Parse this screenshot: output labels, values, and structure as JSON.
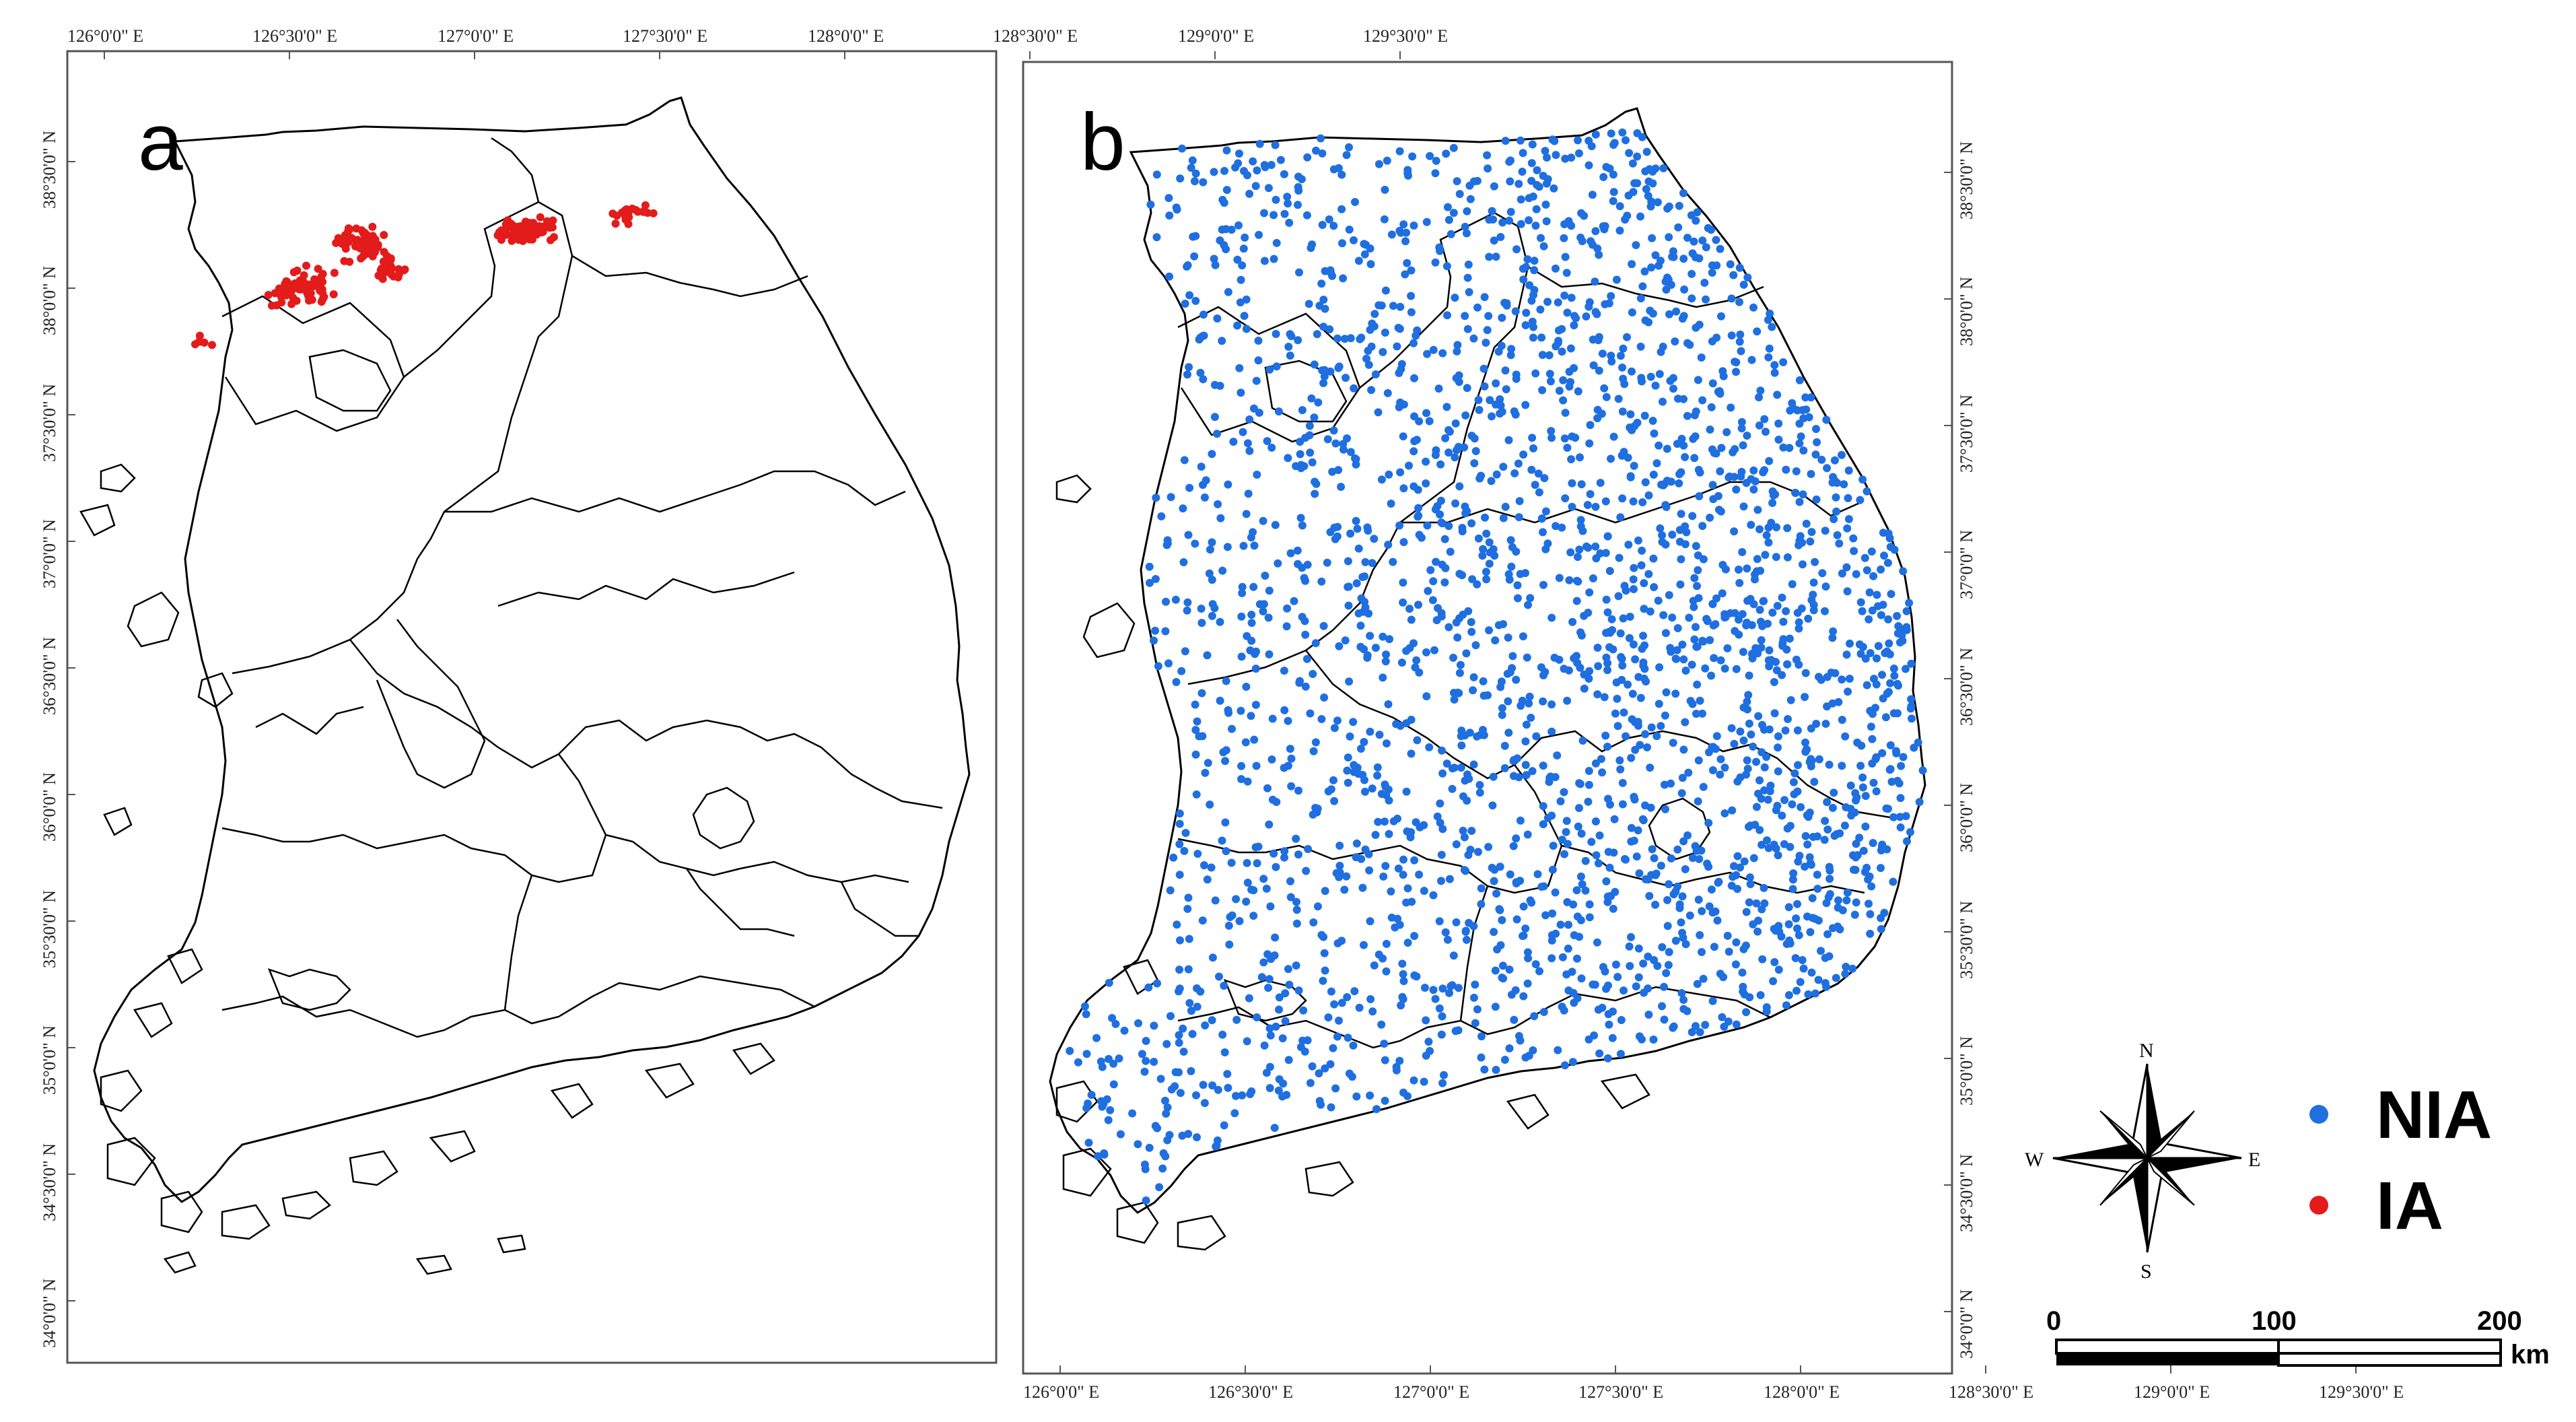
{
  "panels": [
    {
      "letter": "a",
      "top_ticks": [
        "126°0'0\" E",
        "126°30'0\" E",
        "127°0'0\" E",
        "127°30'0\" E",
        "128°0'0\" E",
        "128°30'0\" E",
        "129°0'0\" E",
        "129°30'0\" E"
      ],
      "left_ticks": [
        "38°30'0\" N",
        "38°0'0\" N",
        "37°30'0\" N",
        "37°0'0\" N",
        "36°30'0\" N",
        "36°0'0\" N",
        "35°30'0\" N",
        "35°0'0\" N",
        "34°30'0\" N",
        "34°0'0\" N"
      ],
      "points_series": "IA"
    },
    {
      "letter": "b",
      "bottom_ticks": [
        "126°0'0\" E",
        "126°30'0\" E",
        "127°0'0\" E",
        "127°30'0\" E",
        "128°0'0\" E",
        "128°30'0\" E",
        "129°0'0\" E",
        "129°30'0\" E"
      ],
      "right_ticks": [
        "38°30'0\" N",
        "38°0'0\" N",
        "37°30'0\" N",
        "37°0'0\" N",
        "36°30'0\" N",
        "36°0'0\" N",
        "35°30'0\" N",
        "35°0'0\" N",
        "34°30'0\" N",
        "34°0'0\" N"
      ],
      "points_series": "NIA"
    }
  ],
  "legend": [
    {
      "label": "NIA",
      "color": "#1f6fe0"
    },
    {
      "label": "IA",
      "color": "#e31b1b"
    }
  ],
  "compass": {
    "n": "N",
    "s": "S",
    "e": "E",
    "w": "W"
  },
  "scale_bar": {
    "labels": [
      "0",
      "100",
      "200"
    ],
    "unit": "km"
  },
  "colors": {
    "boundary": "#000000",
    "frame": "#555555",
    "ia": "#e31b1b",
    "nia": "#1f6fe0"
  }
}
